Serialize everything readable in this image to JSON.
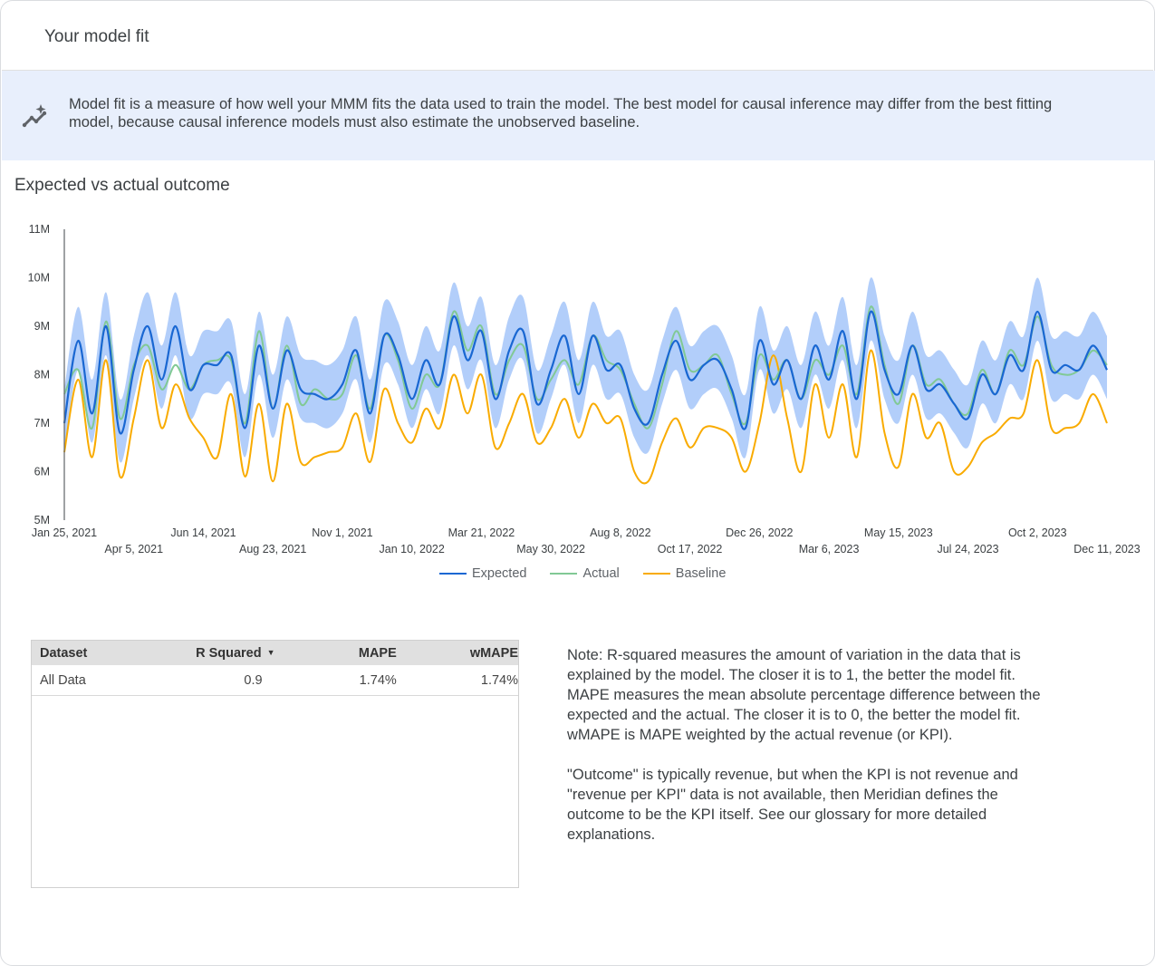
{
  "header": {
    "title": "Your model fit"
  },
  "banner": {
    "icon": "insights-sparkle-icon",
    "text": "Model fit is a measure of how well your MMM fits the data used to train the model. The best model for causal inference may differ from the best fitting model, because causal inference models must also estimate the unobserved baseline."
  },
  "chart_data": {
    "type": "line",
    "title": "Expected vs actual outcome",
    "xlabel": "",
    "ylabel": "",
    "ylim": [
      5000000,
      11000000
    ],
    "y_tick_labels": [
      "11M",
      "10M",
      "9M",
      "8M",
      "7M",
      "6M",
      "5M"
    ],
    "y_tick_values": [
      11000000,
      10000000,
      9000000,
      8000000,
      7000000,
      6000000,
      5000000
    ],
    "x_tick_labels": [
      "Jan 25, 2021",
      "Apr 5, 2021",
      "Jun 14, 2021",
      "Aug 23, 2021",
      "Nov 1, 2021",
      "Jan 10, 2022",
      "Mar 21, 2022",
      "May 30, 2022",
      "Aug 8, 2022",
      "Oct 17, 2022",
      "Dec 26, 2022",
      "Mar 6, 2023",
      "May 15, 2023",
      "Jul 24, 2023",
      "Oct 2, 2023",
      "Dec 11, 2023"
    ],
    "grid": false,
    "legend": "bottom",
    "value_unit": "millions",
    "x": [
      "2021-01-25",
      "2021-02-08",
      "2021-02-22",
      "2021-03-08",
      "2021-03-22",
      "2021-04-05",
      "2021-04-19",
      "2021-05-03",
      "2021-05-17",
      "2021-05-31",
      "2021-06-14",
      "2021-06-28",
      "2021-07-12",
      "2021-07-26",
      "2021-08-09",
      "2021-08-23",
      "2021-09-06",
      "2021-09-20",
      "2021-10-04",
      "2021-10-18",
      "2021-11-01",
      "2021-11-15",
      "2021-11-29",
      "2021-12-13",
      "2021-12-27",
      "2022-01-10",
      "2022-01-24",
      "2022-02-07",
      "2022-02-21",
      "2022-03-07",
      "2022-03-21",
      "2022-04-04",
      "2022-04-18",
      "2022-05-02",
      "2022-05-16",
      "2022-05-30",
      "2022-06-13",
      "2022-06-27",
      "2022-07-11",
      "2022-07-25",
      "2022-08-08",
      "2022-08-22",
      "2022-09-05",
      "2022-09-19",
      "2022-10-03",
      "2022-10-17",
      "2022-10-31",
      "2022-11-14",
      "2022-11-28",
      "2022-12-12",
      "2022-12-26",
      "2023-01-09",
      "2023-01-23",
      "2023-02-06",
      "2023-02-20",
      "2023-03-06",
      "2023-03-20",
      "2023-04-03",
      "2023-04-17",
      "2023-05-01",
      "2023-05-15",
      "2023-05-29",
      "2023-06-12",
      "2023-06-26",
      "2023-07-10",
      "2023-07-24",
      "2023-08-07",
      "2023-08-21",
      "2023-09-04",
      "2023-09-18",
      "2023-10-02",
      "2023-10-16",
      "2023-10-30",
      "2023-11-13",
      "2023-11-27",
      "2023-12-11"
    ],
    "band": {
      "color": "#aecbfa",
      "upper": [
        7.7,
        9.4,
        7.9,
        9.7,
        7.5,
        8.8,
        9.7,
        8.6,
        9.7,
        8.4,
        8.9,
        8.9,
        9.1,
        7.6,
        9.3,
        8.0,
        9.2,
        8.4,
        8.3,
        8.2,
        8.5,
        9.2,
        7.9,
        9.5,
        9.1,
        8.2,
        9.0,
        8.5,
        9.9,
        9.0,
        9.6,
        8.2,
        9.2,
        9.6,
        8.1,
        8.8,
        9.5,
        8.3,
        9.5,
        8.8,
        8.9,
        8.0,
        7.7,
        8.7,
        9.4,
        8.6,
        8.9,
        9.0,
        8.4,
        7.6,
        9.4,
        8.5,
        9.0,
        8.2,
        9.3,
        8.6,
        9.6,
        8.2,
        10.0,
        8.8,
        8.3,
        9.3,
        8.4,
        8.5,
        8.1,
        7.8,
        8.7,
        8.3,
        9.1,
        8.8,
        10.0,
        8.8,
        8.9,
        8.8,
        9.3,
        8.8
      ],
      "lower": [
        6.4,
        8.1,
        6.6,
        8.4,
        6.2,
        7.5,
        8.4,
        7.3,
        8.4,
        7.1,
        7.6,
        7.6,
        7.8,
        6.3,
        8.0,
        6.7,
        7.9,
        7.1,
        7.0,
        6.9,
        7.2,
        7.9,
        6.6,
        8.2,
        7.8,
        6.9,
        7.7,
        7.2,
        8.6,
        7.7,
        8.3,
        6.9,
        7.9,
        8.3,
        6.8,
        7.5,
        8.2,
        7.0,
        8.2,
        7.5,
        7.6,
        6.7,
        6.4,
        7.4,
        8.1,
        7.3,
        7.6,
        7.7,
        7.1,
        6.3,
        8.1,
        7.2,
        7.7,
        6.9,
        8.0,
        7.3,
        8.3,
        6.9,
        8.7,
        7.5,
        7.0,
        8.0,
        7.1,
        7.2,
        6.8,
        6.5,
        7.4,
        7.0,
        7.8,
        7.5,
        8.7,
        7.5,
        7.6,
        7.5,
        8.0,
        7.5
      ]
    },
    "series": [
      {
        "name": "Expected",
        "color": "#1967d2",
        "values": [
          7.0,
          8.7,
          7.2,
          9.0,
          6.8,
          8.1,
          9.0,
          7.9,
          9.0,
          7.7,
          8.2,
          8.2,
          8.4,
          6.9,
          8.6,
          7.3,
          8.5,
          7.7,
          7.6,
          7.5,
          7.8,
          8.5,
          7.2,
          8.8,
          8.4,
          7.5,
          8.3,
          7.8,
          9.2,
          8.3,
          8.9,
          7.5,
          8.5,
          8.9,
          7.4,
          8.1,
          8.8,
          7.6,
          8.8,
          8.1,
          8.2,
          7.3,
          7.0,
          8.0,
          8.7,
          7.9,
          8.2,
          8.3,
          7.7,
          6.9,
          8.7,
          7.8,
          8.3,
          7.5,
          8.6,
          7.9,
          8.9,
          7.5,
          9.3,
          8.1,
          7.6,
          8.6,
          7.7,
          7.8,
          7.4,
          7.1,
          8.0,
          7.6,
          8.4,
          8.1,
          9.3,
          8.1,
          8.2,
          8.1,
          8.6,
          8.1
        ]
      },
      {
        "name": "Actual",
        "color": "#81c995",
        "values": [
          7.6,
          8.1,
          6.9,
          9.1,
          7.1,
          8.2,
          8.6,
          7.7,
          8.2,
          7.7,
          8.2,
          8.3,
          8.3,
          7.0,
          8.9,
          7.3,
          8.6,
          7.4,
          7.7,
          7.5,
          7.6,
          8.4,
          7.3,
          8.8,
          8.3,
          7.3,
          8.0,
          7.8,
          9.3,
          8.5,
          9.0,
          7.6,
          8.3,
          8.6,
          7.5,
          7.9,
          8.3,
          7.8,
          8.8,
          8.3,
          8.1,
          7.4,
          6.9,
          7.8,
          8.9,
          8.1,
          8.2,
          8.4,
          7.6,
          7.0,
          8.4,
          7.9,
          8.3,
          7.5,
          8.3,
          8.0,
          8.6,
          7.6,
          9.4,
          8.2,
          7.4,
          8.6,
          7.8,
          7.9,
          7.4,
          7.2,
          8.1,
          7.6,
          8.5,
          8.2,
          9.2,
          8.2,
          8.0,
          8.1,
          8.5,
          8.2
        ]
      },
      {
        "name": "Baseline",
        "color": "#f9ab00",
        "values": [
          6.4,
          7.9,
          6.3,
          8.3,
          5.9,
          7.1,
          8.3,
          6.9,
          7.8,
          7.1,
          6.7,
          6.3,
          7.6,
          5.9,
          7.4,
          5.8,
          7.4,
          6.2,
          6.3,
          6.4,
          6.5,
          7.2,
          6.2,
          7.7,
          7.0,
          6.6,
          7.3,
          6.9,
          8.0,
          7.2,
          8.0,
          6.5,
          7.0,
          7.6,
          6.6,
          6.9,
          7.5,
          6.7,
          7.4,
          7.0,
          7.1,
          6.0,
          5.8,
          6.6,
          7.1,
          6.5,
          6.9,
          6.9,
          6.7,
          6.0,
          7.0,
          8.4,
          7.1,
          6.0,
          7.8,
          6.7,
          7.8,
          6.3,
          8.5,
          6.8,
          6.1,
          7.6,
          6.7,
          7.0,
          6.0,
          6.1,
          6.6,
          6.8,
          7.1,
          7.2,
          8.3,
          6.9,
          6.9,
          7.0,
          7.6,
          7.0
        ]
      }
    ]
  },
  "table": {
    "columns": [
      "Dataset",
      "R Squared",
      "MAPE",
      "wMAPE"
    ],
    "sort_icon": "sort-descending-icon",
    "rows": [
      {
        "dataset": "All Data",
        "r_squared": "0.9",
        "mape": "1.74%",
        "wmape": "1.74%"
      }
    ]
  },
  "note": {
    "paragraph1": "Note: R-squared measures the amount of variation in the data that is explained by the model. The closer it is to 1, the better the model fit. MAPE measures the mean absolute percentage difference between the expected and the actual. The closer it is to 0, the better the model fit. wMAPE is MAPE weighted by the actual revenue (or KPI).",
    "paragraph2": "\"Outcome\" is typically revenue, but when the KPI is not revenue and \"revenue per KPI\" data is not available, then Meridian defines the outcome to be the KPI itself. See our glossary for more detailed explanations."
  }
}
